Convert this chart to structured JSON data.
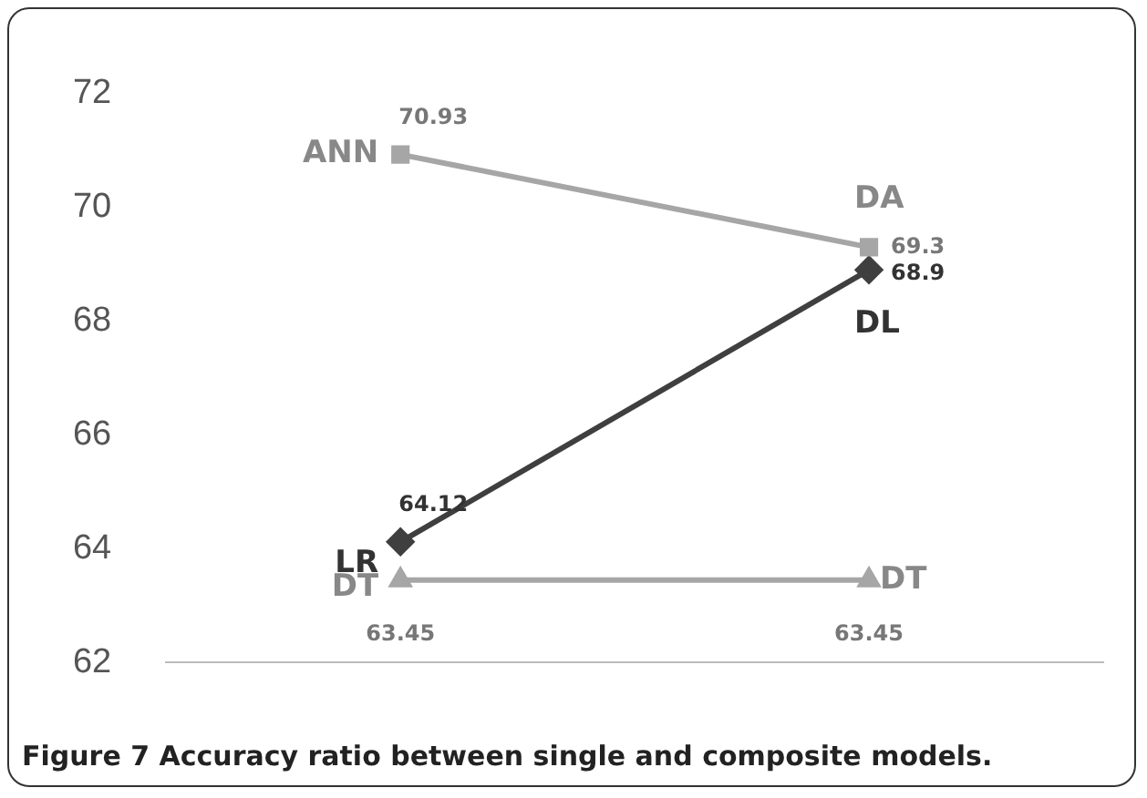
{
  "chart_data": {
    "type": "line",
    "categories": [
      null,
      null
    ],
    "series": [
      {
        "color": "#a6a6a6",
        "marker": "square",
        "values": [
          70.93,
          69.3
        ],
        "value_labels": [
          "70.93",
          "69.3"
        ]
      },
      {
        "color": "#3f3f3f",
        "marker": "diamond",
        "values": [
          64.12,
          68.9
        ],
        "value_labels": [
          "64.12",
          "68.9"
        ]
      },
      {
        "color": "#a6a6a6",
        "marker": "triangle",
        "values": [
          63.45,
          63.45
        ],
        "value_labels": [
          "63.45",
          "63.45"
        ]
      }
    ],
    "ylim": [
      62,
      72
    ],
    "yticks": [
      62,
      64,
      66,
      68,
      70,
      72
    ],
    "grid": false,
    "legend": false,
    "tick_labels": "y",
    "title": "Figure 7 Accuracy ratio between single and composite models.",
    "annotations": [
      "ANN",
      "DA",
      "LR",
      "DL",
      "DT",
      "DT"
    ]
  }
}
